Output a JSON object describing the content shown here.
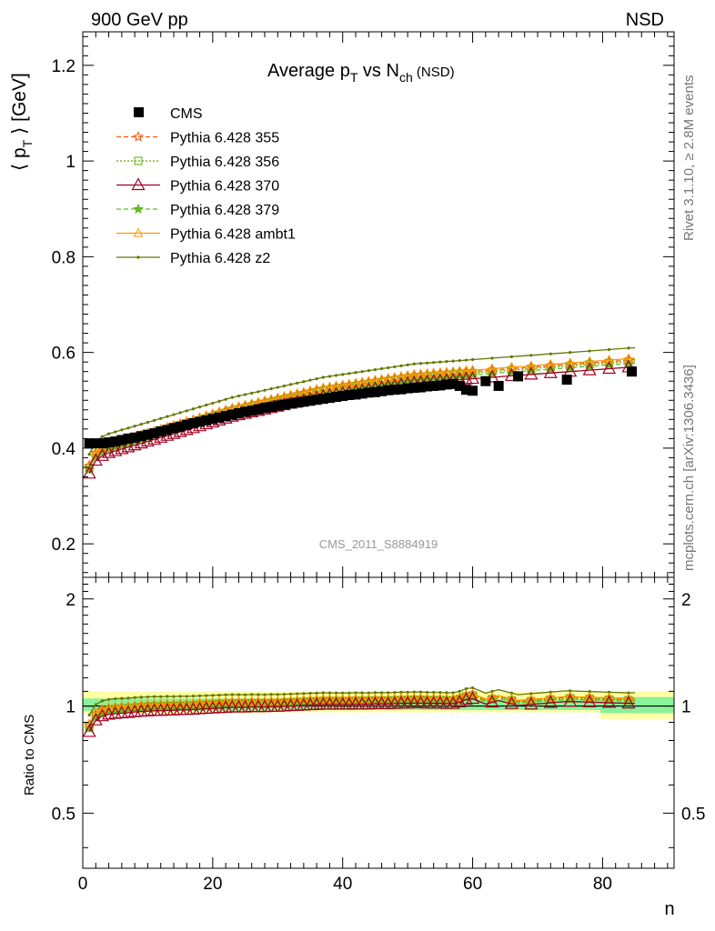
{
  "header": {
    "left": "900 GeV pp",
    "right": "NSD"
  },
  "side_labels": {
    "rivet": "Rivet 3.1.10, ≥ 2.8M events",
    "mcplots": "mcplots.cern.ch [arXiv:1306.3436]"
  },
  "chart_data": {
    "type": "line",
    "title": "Average pT vs Nch (NSD)",
    "title_parts": {
      "a": "Average p",
      "a_sub": "T",
      "b": " vs N",
      "b_sub": "ch",
      "c": " (NSD)"
    },
    "watermark": "CMS_2011_S8884919",
    "xlabel": "n",
    "ylabel": "⟨ pT ⟩ [GeV]",
    "ylabel_parts": {
      "a": "⟨ p",
      "sub": "T",
      "b": " ⟩ [GeV]"
    },
    "ratio_ylabel": "Ratio to CMS",
    "xlim": [
      0,
      91
    ],
    "ylim": [
      0.13,
      1.27
    ],
    "ratio_ylim": [
      0.35,
      2.3
    ],
    "ratio_scale": "log",
    "x_ticks": [
      0,
      20,
      40,
      60,
      80
    ],
    "x_tick_labels": [
      "0",
      "20",
      "40",
      "60",
      "80"
    ],
    "y_ticks": [
      0.2,
      0.4,
      0.6,
      0.8,
      1,
      1.2
    ],
    "y_tick_labels": [
      "0.2",
      "0.4",
      "0.6",
      "0.8",
      "1",
      "1.2"
    ],
    "ratio_ticks": [
      0.5,
      1,
      2
    ],
    "ratio_tick_labels": [
      "0.5",
      "1",
      "2"
    ],
    "legend_position": "top-left",
    "data": {
      "name": "CMS",
      "x": [
        1,
        2,
        3,
        4,
        5,
        6,
        7,
        8,
        9,
        10,
        11,
        12,
        13,
        14,
        15,
        16,
        17,
        18,
        19,
        20,
        21,
        22,
        23,
        24,
        25,
        26,
        27,
        28,
        29,
        30,
        31,
        32,
        33,
        34,
        35,
        36,
        37,
        38,
        39,
        40,
        41,
        42,
        43,
        44,
        45,
        46,
        47,
        48,
        49,
        50,
        51,
        52,
        53,
        54,
        55,
        56,
        57,
        58,
        59,
        60,
        62,
        64,
        67,
        74.5,
        84.5
      ],
      "y": [
        0.41,
        0.41,
        0.41,
        0.412,
        0.414,
        0.417,
        0.42,
        0.422,
        0.425,
        0.428,
        0.431,
        0.435,
        0.438,
        0.442,
        0.445,
        0.449,
        0.452,
        0.455,
        0.458,
        0.461,
        0.464,
        0.467,
        0.47,
        0.473,
        0.476,
        0.478,
        0.481,
        0.484,
        0.486,
        0.489,
        0.491,
        0.493,
        0.495,
        0.497,
        0.499,
        0.501,
        0.503,
        0.505,
        0.507,
        0.509,
        0.511,
        0.512,
        0.514,
        0.516,
        0.517,
        0.519,
        0.521,
        0.522,
        0.523,
        0.525,
        0.526,
        0.527,
        0.529,
        0.53,
        0.531,
        0.533,
        0.534,
        0.53,
        0.522,
        0.52,
        0.54,
        0.53,
        0.55,
        0.543,
        0.56
      ]
    },
    "x": [
      1,
      2,
      3,
      4,
      5,
      6,
      7,
      8,
      9,
      10,
      11,
      12,
      13,
      14,
      15,
      16,
      17,
      18,
      19,
      20,
      21,
      22,
      23,
      24,
      25,
      26,
      27,
      28,
      29,
      30,
      31,
      32,
      33,
      34,
      35,
      36,
      37,
      38,
      39,
      40,
      41,
      42,
      43,
      44,
      45,
      46,
      47,
      48,
      49,
      50,
      51,
      52,
      53,
      54,
      55,
      56,
      57,
      58,
      59,
      60,
      61,
      62,
      63,
      64,
      65,
      66,
      67,
      68,
      69,
      70,
      71,
      72,
      73,
      74,
      75,
      76,
      77,
      78,
      79,
      80,
      81,
      82,
      83,
      84,
      85
    ],
    "series": [
      {
        "name": "Pythia 6.428 355",
        "color": "#ff5500",
        "dash": "5,3",
        "marker": "star-open",
        "offset": -0.003
      },
      {
        "name": "Pythia 6.428 356",
        "color": "#66aa00",
        "dash": "2,2",
        "marker": "square-open",
        "offset": -0.006
      },
      {
        "name": "Pythia 6.428 370",
        "color": "#a00020",
        "dash": "",
        "marker": "triangle-open-large",
        "offset": -0.018
      },
      {
        "name": "Pythia 6.428 379",
        "color": "#66bb22",
        "dash": "5,3",
        "marker": "star-filled",
        "offset": -0.01
      },
      {
        "name": "Pythia 6.428 ambt1",
        "color": "#ff9900",
        "dash": "",
        "marker": "triangle-open",
        "offset": 0.0
      },
      {
        "name": "Pythia 6.428 z2",
        "color": "#667700",
        "dash": "",
        "marker": "dot",
        "offset": 0.022
      }
    ],
    "mc_base": [
      0.365,
      0.392,
      0.402,
      0.408,
      0.412,
      0.416,
      0.42,
      0.424,
      0.428,
      0.432,
      0.436,
      0.44,
      0.444,
      0.448,
      0.452,
      0.456,
      0.46,
      0.464,
      0.468,
      0.472,
      0.476,
      0.48,
      0.484,
      0.487,
      0.49,
      0.493,
      0.496,
      0.499,
      0.502,
      0.505,
      0.508,
      0.511,
      0.514,
      0.517,
      0.52,
      0.523,
      0.526,
      0.528,
      0.53,
      0.532,
      0.534,
      0.536,
      0.538,
      0.54,
      0.542,
      0.544,
      0.546,
      0.548,
      0.55,
      0.552,
      0.554,
      0.555,
      0.556,
      0.557,
      0.558,
      0.559,
      0.56,
      0.561,
      0.562,
      0.563,
      0.564,
      0.565,
      0.566,
      0.567,
      0.568,
      0.569,
      0.57,
      0.571,
      0.572,
      0.573,
      0.574,
      0.575,
      0.576,
      0.577,
      0.578,
      0.579,
      0.58,
      0.581,
      0.582,
      0.583,
      0.584,
      0.585,
      0.586,
      0.587,
      0.588
    ]
  }
}
